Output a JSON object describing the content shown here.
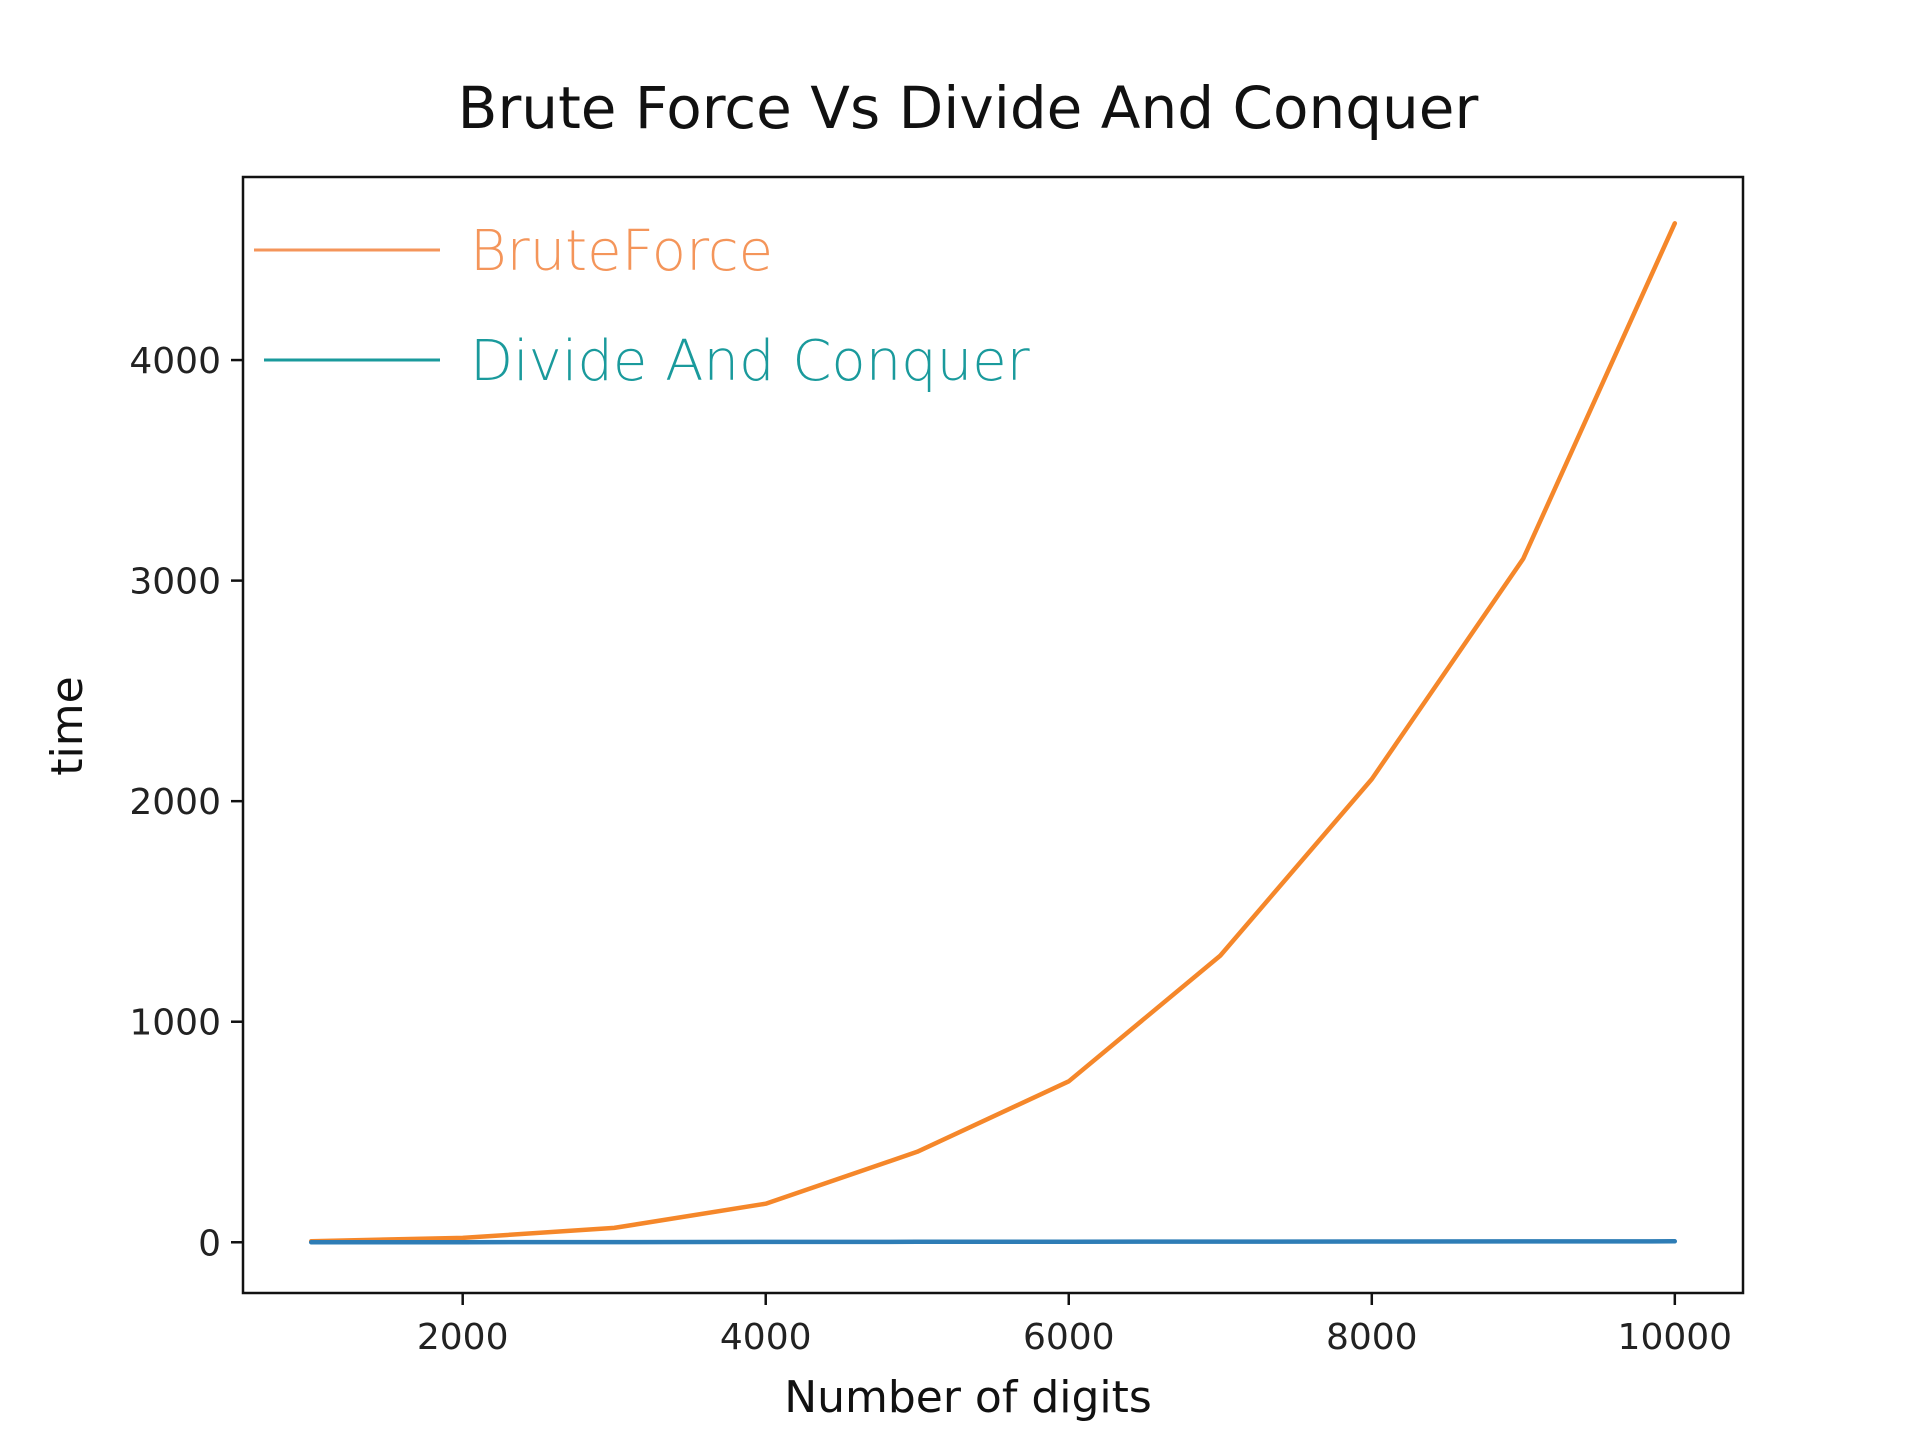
{
  "chart_data": {
    "type": "line",
    "title": "Brute Force Vs Divide And Conquer",
    "xlabel": "Number of digits",
    "ylabel": "time",
    "xlim": [
      550,
      10450
    ],
    "ylim": [
      -230,
      4830
    ],
    "xticks": [
      2000,
      4000,
      6000,
      8000,
      10000
    ],
    "xtick_labels": [
      "2000",
      "4000",
      "6000",
      "8000",
      "10000"
    ],
    "yticks": [
      0,
      1000,
      2000,
      3000,
      4000
    ],
    "ytick_labels": [
      "0",
      "1000",
      "2000",
      "3000",
      "4000"
    ],
    "grid": false,
    "legend_position": "top-left",
    "x": [
      1000,
      2000,
      3000,
      4000,
      5000,
      6000,
      7000,
      8000,
      9000,
      10000
    ],
    "series": [
      {
        "name": "BruteForce",
        "color": "#f5872a",
        "legend_color": "#f4955a",
        "values": [
          5,
          20,
          65,
          175,
          410,
          730,
          1300,
          2100,
          3100,
          4620
        ]
      },
      {
        "name": "Divide And Conquer",
        "color": "#2e7db6",
        "legend_color": "#1a9a9c",
        "values": [
          0,
          0.5,
          1,
          1.5,
          2,
          2.5,
          3,
          3.5,
          4,
          4.5
        ]
      }
    ]
  }
}
